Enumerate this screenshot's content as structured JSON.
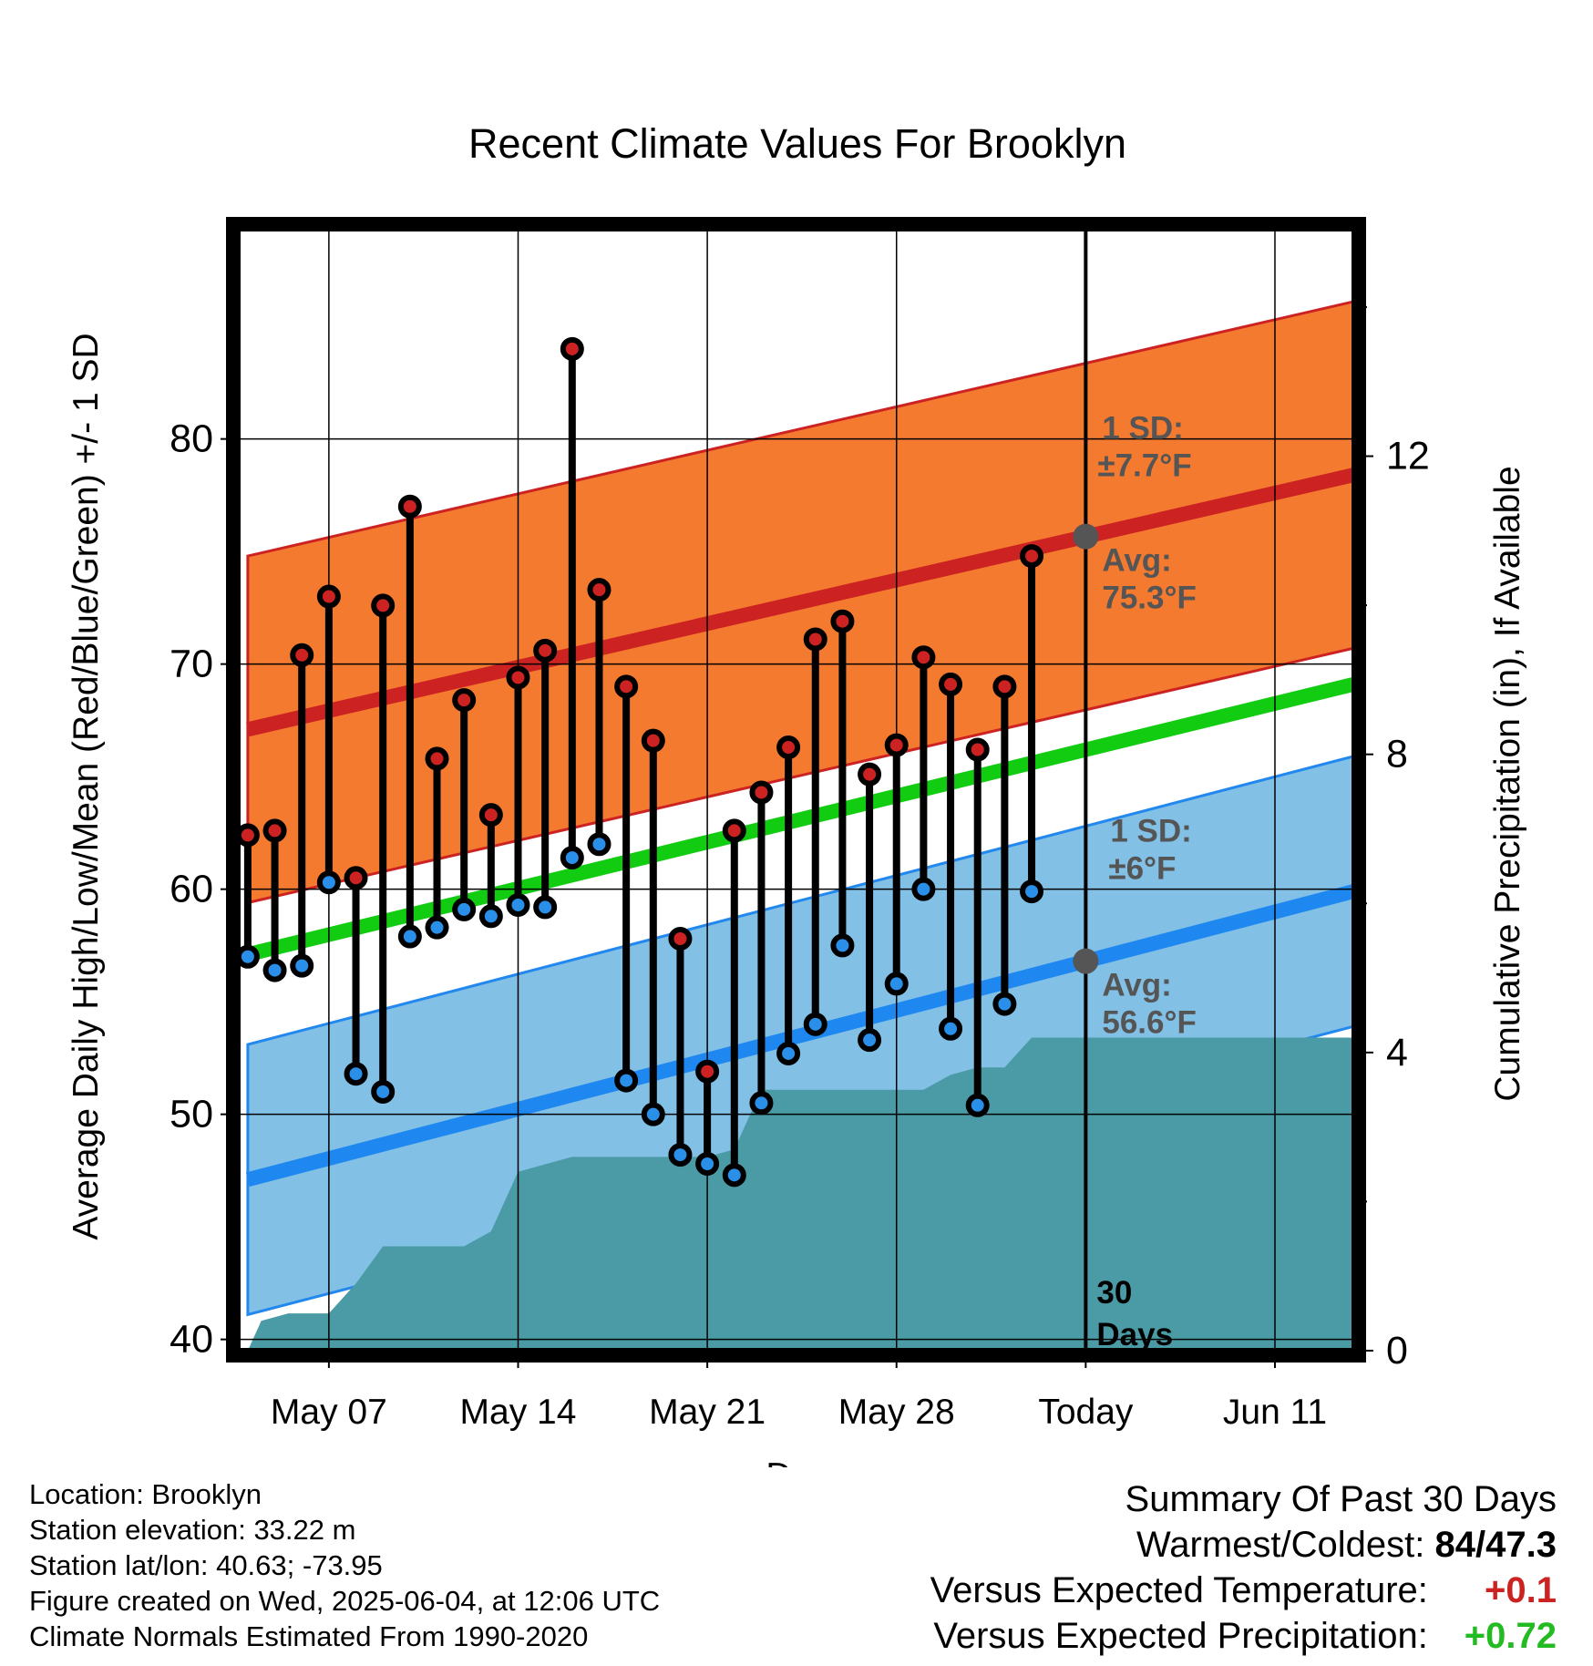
{
  "colors": {
    "high_band": "#f47a30",
    "high_mean": "#cc2222",
    "low_band": "#82c0e6",
    "low_band_edge": "#2288ee",
    "low_mean": "#1e88f0",
    "mean_line": "#11cc11",
    "precip": "#4a9ba5",
    "high_dot": "#cc2222",
    "low_dot": "#2a8fe8",
    "annotation": "#555555"
  },
  "chart_data": {
    "type": "line",
    "title": "Recent Climate Values For Brooklyn",
    "xlabel": "Day",
    "ylabel": "Average Daily High/Low/Mean (Red/Blue/Green) +/- 1 SD",
    "y2label": "Cumulative Precipitation (in), If Available",
    "ylim": [
      39.5,
      89.5
    ],
    "y2lim": [
      0,
      15.1
    ],
    "xlim": [
      -0.3,
      40.9
    ],
    "yticks": [
      "40",
      "50",
      "60",
      "70",
      "80"
    ],
    "y2ticks": [
      "0",
      "4",
      "8",
      "12"
    ],
    "xticks": [
      {
        "x": 3,
        "label": "May 07"
      },
      {
        "x": 10,
        "label": "May 14"
      },
      {
        "x": 17,
        "label": "May 21"
      },
      {
        "x": 24,
        "label": "May 28"
      },
      {
        "x": 31,
        "label": "Today"
      },
      {
        "x": 38,
        "label": "Jun 11"
      }
    ],
    "today_x": 31,
    "normals": {
      "x": [
        0,
        40.9
      ],
      "high_avg": [
        67.1,
        78.4
      ],
      "high_sd": 7.7,
      "low_avg": [
        47.1,
        59.9
      ],
      "low_sd": 6,
      "mean_avg": [
        57.1,
        69.1
      ]
    },
    "series": [
      {
        "name": "High",
        "x": [
          0,
          1,
          2,
          3,
          4,
          5,
          6,
          7,
          8,
          9,
          10,
          11,
          12,
          13,
          14,
          15,
          16,
          17,
          18,
          19,
          20,
          21,
          22,
          23,
          24,
          25,
          26,
          27,
          28,
          29
        ],
        "values": [
          62.4,
          62.6,
          70.4,
          73.0,
          60.5,
          72.6,
          77.0,
          65.8,
          68.4,
          63.3,
          69.4,
          70.6,
          84.0,
          73.3,
          69.0,
          66.6,
          57.8,
          51.9,
          62.6,
          64.3,
          66.3,
          71.1,
          71.9,
          65.1,
          66.4,
          70.3,
          69.1,
          66.2,
          69.0,
          74.8
        ]
      },
      {
        "name": "Low",
        "x": [
          0,
          1,
          2,
          3,
          4,
          5,
          6,
          7,
          8,
          9,
          10,
          11,
          12,
          13,
          14,
          15,
          16,
          17,
          18,
          19,
          20,
          21,
          22,
          23,
          24,
          25,
          26,
          27,
          28,
          29
        ],
        "values": [
          57.0,
          56.4,
          56.6,
          60.3,
          51.8,
          51.0,
          57.9,
          58.3,
          59.1,
          58.8,
          59.3,
          59.2,
          61.4,
          62.0,
          51.5,
          50.0,
          48.2,
          47.8,
          47.3,
          50.5,
          52.7,
          54.0,
          57.5,
          53.3,
          55.8,
          60.0,
          53.8,
          50.4,
          54.9,
          59.9
        ]
      }
    ],
    "precipitation": {
      "x": [
        0,
        0.5,
        1.5,
        3,
        4,
        5,
        6,
        7,
        8,
        9,
        10,
        11,
        12,
        13,
        14,
        15,
        16,
        17,
        18,
        19,
        20,
        21,
        22,
        23,
        24,
        25,
        26,
        27,
        28,
        29,
        30,
        31,
        32,
        33,
        34,
        35,
        36,
        37,
        38,
        39,
        40,
        40.9
      ],
      "values": [
        0,
        0.4,
        0.5,
        0.5,
        0.9,
        1.4,
        1.4,
        1.4,
        1.4,
        1.6,
        2.4,
        2.5,
        2.6,
        2.6,
        2.6,
        2.6,
        2.6,
        2.6,
        2.7,
        3.5,
        3.5,
        3.5,
        3.5,
        3.5,
        3.5,
        3.5,
        3.7,
        3.8,
        3.8,
        4.2,
        4.2,
        4.2,
        4.2,
        4.2,
        4.2,
        4.2,
        4.2,
        4.2,
        4.2,
        4.2,
        4.2,
        4.2
      ]
    },
    "annotations": {
      "high_sd_label": "1 SD:",
      "high_sd_value": "±7.7°F",
      "high_avg_label": "Avg:",
      "high_avg_value": "75.3°F",
      "low_sd_label": "1 SD:",
      "low_sd_value": "±6°F",
      "low_avg_label": "Avg:",
      "low_avg_value": "56.6°F",
      "days_number": "30",
      "days_label": "Days"
    }
  },
  "footer": {
    "location": "Location: Brooklyn",
    "elevation": "Station elevation: 33.22 m",
    "latlon": "Station lat/lon: 40.63; -73.95",
    "created": "Figure created on Wed, 2025-06-04, at 12:06 UTC",
    "normals": "Climate Normals Estimated From 1990-2020"
  },
  "summary": {
    "heading": "Summary Of Past 30 Days",
    "warmest_label": "Warmest/Coldest:",
    "warmest_value": "84/47.3",
    "temp_label": "Versus Expected Temperature:",
    "temp_value": "+0.1",
    "precip_label": "Versus Expected Precipitation:",
    "precip_value": "+0.72"
  }
}
